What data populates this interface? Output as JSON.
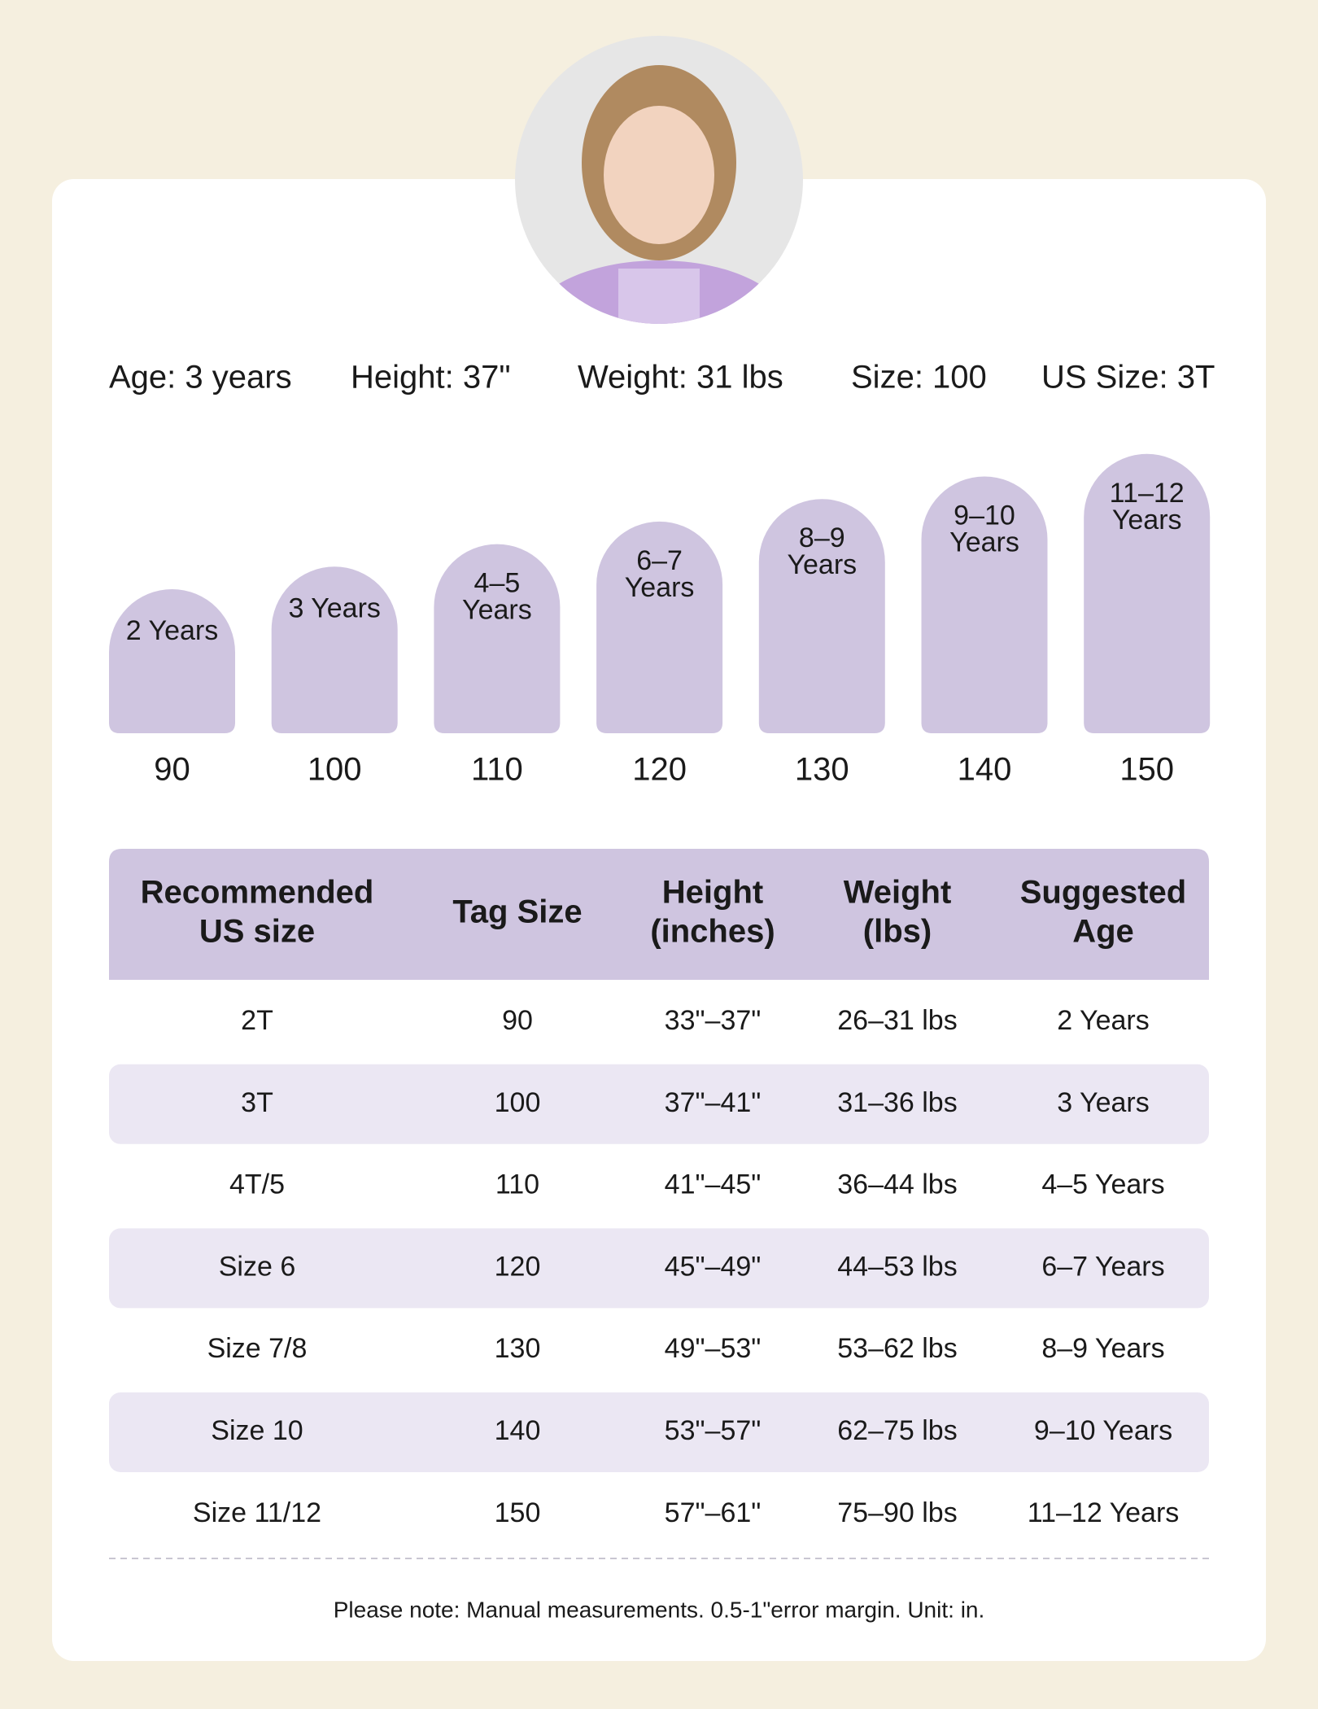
{
  "profile": [
    "Age: 3 years",
    "Height: 37\"",
    "Weight: 31 lbs",
    "Size: 100",
    "US Size: 3T"
  ],
  "sizes": [
    {
      "label": [
        "2 Years"
      ],
      "tag": "90"
    },
    {
      "label": [
        "3 Years"
      ],
      "tag": "100"
    },
    {
      "label": [
        "4–5",
        "Years"
      ],
      "tag": "110"
    },
    {
      "label": [
        "6–7",
        "Years"
      ],
      "tag": "120"
    },
    {
      "label": [
        "8–9",
        "Years"
      ],
      "tag": "130"
    },
    {
      "label": [
        "9–10",
        "Years"
      ],
      "tag": "140"
    },
    {
      "label": [
        "11–12",
        "Years"
      ],
      "tag": "150"
    }
  ],
  "table": {
    "header": [
      [
        "Recommended",
        "US size"
      ],
      [
        "Tag Size"
      ],
      [
        "Height",
        "(inches)"
      ],
      [
        "Weight",
        "(lbs)"
      ],
      [
        "Suggested",
        "Age"
      ]
    ],
    "rows": [
      [
        "2T",
        "90",
        "33\"–37\"",
        "26–31 lbs",
        "2 Years"
      ],
      [
        "3T",
        "100",
        "37\"–41\"",
        "31–36 lbs",
        "3 Years"
      ],
      [
        "4T/5",
        "110",
        "41\"–45\"",
        "36–44 lbs",
        "4–5 Years"
      ],
      [
        "Size 6",
        "120",
        "45\"–49\"",
        "44–53 lbs",
        "6–7 Years"
      ],
      [
        "Size 7/8",
        "130",
        "49\"–53\"",
        "53–62 lbs",
        "8–9 Years"
      ],
      [
        "Size 10",
        "140",
        "53\"–57\"",
        "62–75 lbs",
        "9–10 Years"
      ],
      [
        "Size 11/12",
        "150",
        "57\"–61\"",
        "75–90 lbs",
        "11–12 Years"
      ]
    ]
  },
  "note": "Please note: Manual measurements. 0.5-1\"error margin. Unit: in."
}
